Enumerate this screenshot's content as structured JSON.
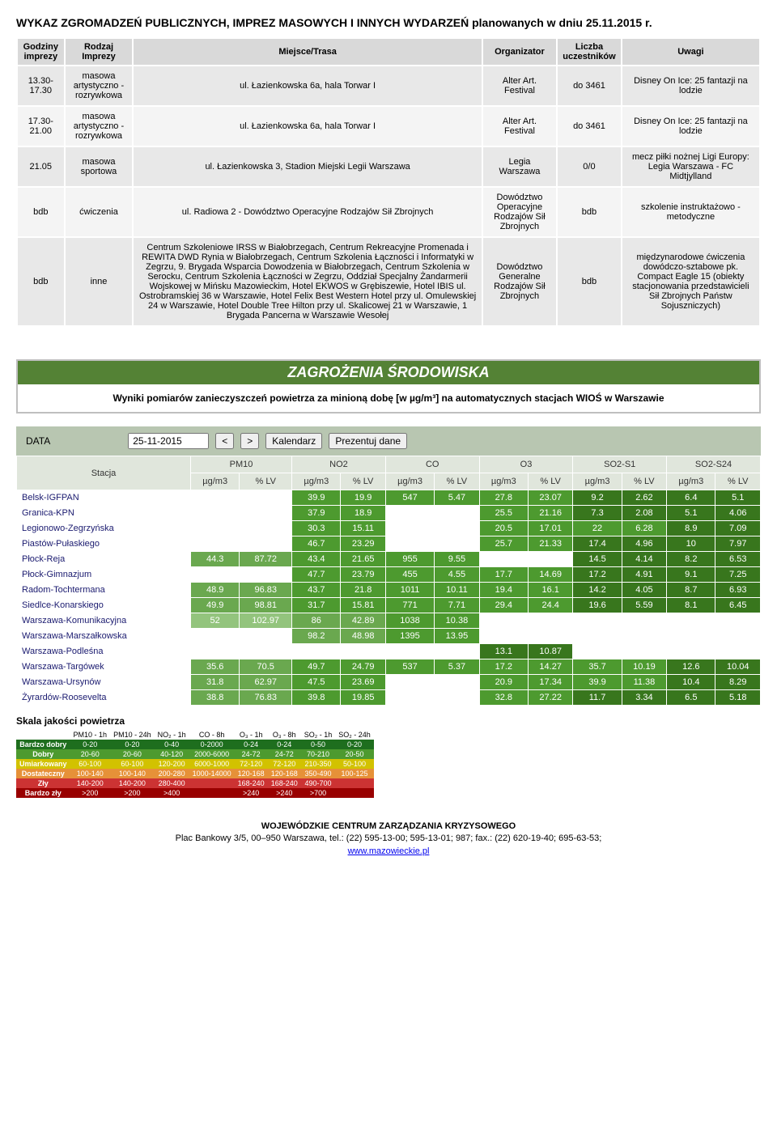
{
  "title": "WYKAZ ZGROMADZEŃ PUBLICZNYCH, IMPREZ MASOWYCH I INNYCH WYDARZEŃ planowanych w dniu 25.11.2015 r.",
  "events": {
    "headers": [
      "Godziny imprezy",
      "Rodzaj Imprezy",
      "Miejsce/Trasa",
      "Organizator",
      "Liczba uczestników",
      "Uwagi"
    ],
    "rows": [
      {
        "time": "13.30-17.30",
        "type": "masowa artystyczno - rozrywkowa",
        "place": "ul. Łazienkowska 6a, hala Torwar I",
        "org": "Alter Art. Festival",
        "count": "do 3461",
        "notes": "Disney On Ice: 25 fantazji na lodzie"
      },
      {
        "time": "17.30-21.00",
        "type": "masowa artystyczno - rozrywkowa",
        "place": "ul. Łazienkowska 6a, hala Torwar I",
        "org": "Alter Art. Festival",
        "count": "do 3461",
        "notes": "Disney On Ice: 25 fantazji na lodzie"
      },
      {
        "time": "21.05",
        "type": "masowa sportowa",
        "place": "ul. Łazienkowska 3, Stadion Miejski Legii Warszawa",
        "org": "Legia Warszawa",
        "count": "0/0",
        "notes": "mecz piłki nożnej Ligi Europy: Legia Warszawa - FC Midtjylland"
      },
      {
        "time": "bdb",
        "type": "ćwiczenia",
        "place": "ul. Radiowa 2 - Dowództwo Operacyjne Rodzajów Sił Zbrojnych",
        "org": "Dowództwo Operacyjne Rodzajów Sił Zbrojnych",
        "count": "bdb",
        "notes": "szkolenie instruktażowo - metodyczne"
      },
      {
        "time": "bdb",
        "type": "inne",
        "place": "Centrum Szkoleniowe IRSS w Białobrzegach, Centrum Rekreacyjne Promenada i REWITA DWD Rynia w Białobrzegach, Centrum Szkolenia Łączności i Informatyki w Zegrzu, 9. Brygada Wsparcia Dowodzenia w Białobrzegach, Centrum Szkolenia w Serocku, Centrum Szkolenia Łączności w Zegrzu, Oddział Specjalny Żandarmerii Wojskowej w Mińsku Mazowieckim, Hotel EKWOS w Grębiszewie, Hotel IBIS ul. Ostrobramskiej 36 w Warszawie, Hotel Felix Best Western Hotel przy ul. Omulewskiej 24 w Warszawie, Hotel Double Tree Hilton przy ul. Skalicowej 21 w Warszawie, 1 Brygada Pancerna w Warszawie Wesołej",
        "org": "Dowództwo Generalne Rodzajów Sił Zbrojnych",
        "count": "bdb",
        "notes": "międzynarodowe ćwiczenia dowódczo-sztabowe pk. Compact Eagle 15 (obiekty stacjonowania przedstawicieli Sił Zbrojnych Państw Sojuszniczych)"
      }
    ]
  },
  "env": {
    "header": "ZAGROŻENIA  ŚRODOWISKA",
    "subtitle": "Wyniki pomiarów zanieczyszczeń powietrza za minioną dobę [w µg/m³] na automatycznych stacjach WIOŚ w Warszawie"
  },
  "datebar": {
    "data_label": "DATA",
    "date_value": "25-11-2015",
    "btn_prev": "<",
    "btn_next": ">",
    "btn_cal": "Kalendarz",
    "btn_show": "Prezentuj dane"
  },
  "pollution": {
    "station_label": "Stacja",
    "groups": [
      "PM10",
      "NO2",
      "CO",
      "O3",
      "SO2-S1",
      "SO2-S24"
    ],
    "subheaders": [
      "µg/m3",
      "% LV"
    ],
    "colors": {
      "pm10_ug": {
        "0.4": "#38761d",
        "0.6": "#38761d",
        "0.8": "#6aa84f",
        "1.0": "#93c47d"
      },
      "green_a": "#38761d",
      "green_b": "#4d9a2f",
      "green_c": "#6aa84f",
      "lime": "#93c47d"
    },
    "rows": [
      {
        "station": "Belsk-IGFPAN",
        "cells": [
          null,
          null,
          {
            "v": "39.9",
            "c": "#4d9a2f"
          },
          {
            "v": "19.9",
            "c": "#4d9a2f"
          },
          {
            "v": "547",
            "c": "#4d9a2f"
          },
          {
            "v": "5.47",
            "c": "#4d9a2f"
          },
          {
            "v": "27.8",
            "c": "#4d9a2f"
          },
          {
            "v": "23.07",
            "c": "#4d9a2f"
          },
          {
            "v": "9.2",
            "c": "#38761d"
          },
          {
            "v": "2.62",
            "c": "#38761d"
          },
          {
            "v": "6.4",
            "c": "#38761d"
          },
          {
            "v": "5.1",
            "c": "#38761d"
          }
        ]
      },
      {
        "station": "Granica-KPN",
        "cells": [
          null,
          null,
          {
            "v": "37.9",
            "c": "#4d9a2f"
          },
          {
            "v": "18.9",
            "c": "#4d9a2f"
          },
          null,
          null,
          {
            "v": "25.5",
            "c": "#4d9a2f"
          },
          {
            "v": "21.16",
            "c": "#4d9a2f"
          },
          {
            "v": "7.3",
            "c": "#38761d"
          },
          {
            "v": "2.08",
            "c": "#38761d"
          },
          {
            "v": "5.1",
            "c": "#38761d"
          },
          {
            "v": "4.06",
            "c": "#38761d"
          }
        ]
      },
      {
        "station": "Legionowo-Zegrzyńska",
        "cells": [
          null,
          null,
          {
            "v": "30.3",
            "c": "#4d9a2f"
          },
          {
            "v": "15.11",
            "c": "#4d9a2f"
          },
          null,
          null,
          {
            "v": "20.5",
            "c": "#4d9a2f"
          },
          {
            "v": "17.01",
            "c": "#4d9a2f"
          },
          {
            "v": "22",
            "c": "#4d9a2f"
          },
          {
            "v": "6.28",
            "c": "#4d9a2f"
          },
          {
            "v": "8.9",
            "c": "#38761d"
          },
          {
            "v": "7.09",
            "c": "#38761d"
          }
        ]
      },
      {
        "station": "Piastów-Pułaskiego",
        "cells": [
          null,
          null,
          {
            "v": "46.7",
            "c": "#4d9a2f"
          },
          {
            "v": "23.29",
            "c": "#4d9a2f"
          },
          null,
          null,
          {
            "v": "25.7",
            "c": "#4d9a2f"
          },
          {
            "v": "21.33",
            "c": "#4d9a2f"
          },
          {
            "v": "17.4",
            "c": "#38761d"
          },
          {
            "v": "4.96",
            "c": "#38761d"
          },
          {
            "v": "10",
            "c": "#38761d"
          },
          {
            "v": "7.97",
            "c": "#38761d"
          }
        ]
      },
      {
        "station": "Płock-Reja",
        "cells": [
          {
            "v": "44.3",
            "c": "#6aa84f"
          },
          {
            "v": "87.72",
            "c": "#6aa84f"
          },
          {
            "v": "43.4",
            "c": "#4d9a2f"
          },
          {
            "v": "21.65",
            "c": "#4d9a2f"
          },
          {
            "v": "955",
            "c": "#4d9a2f"
          },
          {
            "v": "9.55",
            "c": "#4d9a2f"
          },
          null,
          null,
          {
            "v": "14.5",
            "c": "#38761d"
          },
          {
            "v": "4.14",
            "c": "#38761d"
          },
          {
            "v": "8.2",
            "c": "#38761d"
          },
          {
            "v": "6.53",
            "c": "#38761d"
          }
        ]
      },
      {
        "station": "Płock-Gimnazjum",
        "cells": [
          null,
          null,
          {
            "v": "47.7",
            "c": "#4d9a2f"
          },
          {
            "v": "23.79",
            "c": "#4d9a2f"
          },
          {
            "v": "455",
            "c": "#4d9a2f"
          },
          {
            "v": "4.55",
            "c": "#4d9a2f"
          },
          {
            "v": "17.7",
            "c": "#4d9a2f"
          },
          {
            "v": "14.69",
            "c": "#4d9a2f"
          },
          {
            "v": "17.2",
            "c": "#38761d"
          },
          {
            "v": "4.91",
            "c": "#38761d"
          },
          {
            "v": "9.1",
            "c": "#38761d"
          },
          {
            "v": "7.25",
            "c": "#38761d"
          }
        ]
      },
      {
        "station": "Radom-Tochtermana",
        "cells": [
          {
            "v": "48.9",
            "c": "#6aa84f"
          },
          {
            "v": "96.83",
            "c": "#6aa84f"
          },
          {
            "v": "43.7",
            "c": "#4d9a2f"
          },
          {
            "v": "21.8",
            "c": "#4d9a2f"
          },
          {
            "v": "1011",
            "c": "#4d9a2f"
          },
          {
            "v": "10.11",
            "c": "#4d9a2f"
          },
          {
            "v": "19.4",
            "c": "#4d9a2f"
          },
          {
            "v": "16.1",
            "c": "#4d9a2f"
          },
          {
            "v": "14.2",
            "c": "#38761d"
          },
          {
            "v": "4.05",
            "c": "#38761d"
          },
          {
            "v": "8.7",
            "c": "#38761d"
          },
          {
            "v": "6.93",
            "c": "#38761d"
          }
        ]
      },
      {
        "station": "Siedlce-Konarskiego",
        "cells": [
          {
            "v": "49.9",
            "c": "#6aa84f"
          },
          {
            "v": "98.81",
            "c": "#6aa84f"
          },
          {
            "v": "31.7",
            "c": "#4d9a2f"
          },
          {
            "v": "15.81",
            "c": "#4d9a2f"
          },
          {
            "v": "771",
            "c": "#4d9a2f"
          },
          {
            "v": "7.71",
            "c": "#4d9a2f"
          },
          {
            "v": "29.4",
            "c": "#4d9a2f"
          },
          {
            "v": "24.4",
            "c": "#4d9a2f"
          },
          {
            "v": "19.6",
            "c": "#38761d"
          },
          {
            "v": "5.59",
            "c": "#38761d"
          },
          {
            "v": "8.1",
            "c": "#38761d"
          },
          {
            "v": "6.45",
            "c": "#38761d"
          }
        ]
      },
      {
        "station": "Warszawa-Komunikacyjna",
        "cells": [
          {
            "v": "52",
            "c": "#93c47d"
          },
          {
            "v": "102.97",
            "c": "#93c47d"
          },
          {
            "v": "86",
            "c": "#6aa84f"
          },
          {
            "v": "42.89",
            "c": "#6aa84f"
          },
          {
            "v": "1038",
            "c": "#4d9a2f"
          },
          {
            "v": "10.38",
            "c": "#4d9a2f"
          },
          null,
          null,
          null,
          null,
          null,
          null
        ]
      },
      {
        "station": "Warszawa-Marszałkowska",
        "cells": [
          null,
          null,
          {
            "v": "98.2",
            "c": "#6aa84f"
          },
          {
            "v": "48.98",
            "c": "#6aa84f"
          },
          {
            "v": "1395",
            "c": "#4d9a2f"
          },
          {
            "v": "13.95",
            "c": "#4d9a2f"
          },
          null,
          null,
          null,
          null,
          null,
          null
        ]
      },
      {
        "station": "Warszawa-Podleśna",
        "cells": [
          null,
          null,
          null,
          null,
          null,
          null,
          {
            "v": "13.1",
            "c": "#38761d"
          },
          {
            "v": "10.87",
            "c": "#38761d"
          },
          null,
          null,
          null,
          null
        ]
      },
      {
        "station": "Warszawa-Targówek",
        "cells": [
          {
            "v": "35.6",
            "c": "#6aa84f"
          },
          {
            "v": "70.5",
            "c": "#6aa84f"
          },
          {
            "v": "49.7",
            "c": "#4d9a2f"
          },
          {
            "v": "24.79",
            "c": "#4d9a2f"
          },
          {
            "v": "537",
            "c": "#4d9a2f"
          },
          {
            "v": "5.37",
            "c": "#4d9a2f"
          },
          {
            "v": "17.2",
            "c": "#4d9a2f"
          },
          {
            "v": "14.27",
            "c": "#4d9a2f"
          },
          {
            "v": "35.7",
            "c": "#4d9a2f"
          },
          {
            "v": "10.19",
            "c": "#4d9a2f"
          },
          {
            "v": "12.6",
            "c": "#38761d"
          },
          {
            "v": "10.04",
            "c": "#38761d"
          }
        ]
      },
      {
        "station": "Warszawa-Ursynów",
        "cells": [
          {
            "v": "31.8",
            "c": "#6aa84f"
          },
          {
            "v": "62.97",
            "c": "#6aa84f"
          },
          {
            "v": "47.5",
            "c": "#4d9a2f"
          },
          {
            "v": "23.69",
            "c": "#4d9a2f"
          },
          null,
          null,
          {
            "v": "20.9",
            "c": "#4d9a2f"
          },
          {
            "v": "17.34",
            "c": "#4d9a2f"
          },
          {
            "v": "39.9",
            "c": "#4d9a2f"
          },
          {
            "v": "11.38",
            "c": "#4d9a2f"
          },
          {
            "v": "10.4",
            "c": "#38761d"
          },
          {
            "v": "8.29",
            "c": "#38761d"
          }
        ]
      },
      {
        "station": "Żyrardów-Roosevelta",
        "cells": [
          {
            "v": "38.8",
            "c": "#6aa84f"
          },
          {
            "v": "76.83",
            "c": "#6aa84f"
          },
          {
            "v": "39.8",
            "c": "#4d9a2f"
          },
          {
            "v": "19.85",
            "c": "#4d9a2f"
          },
          null,
          null,
          {
            "v": "32.8",
            "c": "#4d9a2f"
          },
          {
            "v": "27.22",
            "c": "#4d9a2f"
          },
          {
            "v": "11.7",
            "c": "#38761d"
          },
          {
            "v": "3.34",
            "c": "#38761d"
          },
          {
            "v": "6.5",
            "c": "#38761d"
          },
          {
            "v": "5.18",
            "c": "#38761d"
          }
        ]
      }
    ]
  },
  "scale": {
    "title": "Skala jakości powietrza",
    "headers": [
      "",
      "PM10 - 1h",
      "PM10 - 24h",
      "NO₂ - 1h",
      "CO - 8h",
      "O₃ - 1h",
      "O₃ - 8h",
      "SO₂ - 1h",
      "SO₂ - 24h"
    ],
    "rows": [
      {
        "label": "Bardzo dobry",
        "color": "#1e6e1e",
        "cells": [
          "0-20",
          "0-20",
          "0-40",
          "0-2000",
          "0-24",
          "0-24",
          "0-50",
          "0-20"
        ]
      },
      {
        "label": "Dobry",
        "color": "#4d9a2f",
        "cells": [
          "20-60",
          "20-60",
          "40-120",
          "2000-6000",
          "24-72",
          "24-72",
          "70-210",
          "20-50"
        ]
      },
      {
        "label": "Umiarkowany",
        "color": "#d2c200",
        "cells": [
          "60-100",
          "60-100",
          "120-200",
          "6000-1000",
          "72-120",
          "72-120",
          "210-350",
          "50-100"
        ]
      },
      {
        "label": "Dostateczny",
        "color": "#e69138",
        "cells": [
          "100-140",
          "100-140",
          "200-280",
          "1000-14000",
          "120-168",
          "120-168",
          "350-490",
          "100-125"
        ]
      },
      {
        "label": "Zły",
        "color": "#cc3333",
        "cells": [
          "140-200",
          "140-200",
          "280-400",
          "",
          "168-240",
          "168-240",
          "490-700",
          ""
        ]
      },
      {
        "label": "Bardzo zły",
        "color": "#990000",
        "cells": [
          ">200",
          ">200",
          ">400",
          "",
          ">240",
          ">240",
          ">700",
          ""
        ]
      }
    ]
  },
  "footer": {
    "line1": "WOJEWÓDZKIE CENTRUM ZARZĄDZANIA KRYZYSOWEGO",
    "line2": "Plac Bankowy 3/5, 00–950 Warszawa, tel.: (22) 595-13-00; 595-13-01; 987; fax.: (22) 620-19-40; 695-63-53;",
    "link": "www.mazowieckie.pl"
  }
}
